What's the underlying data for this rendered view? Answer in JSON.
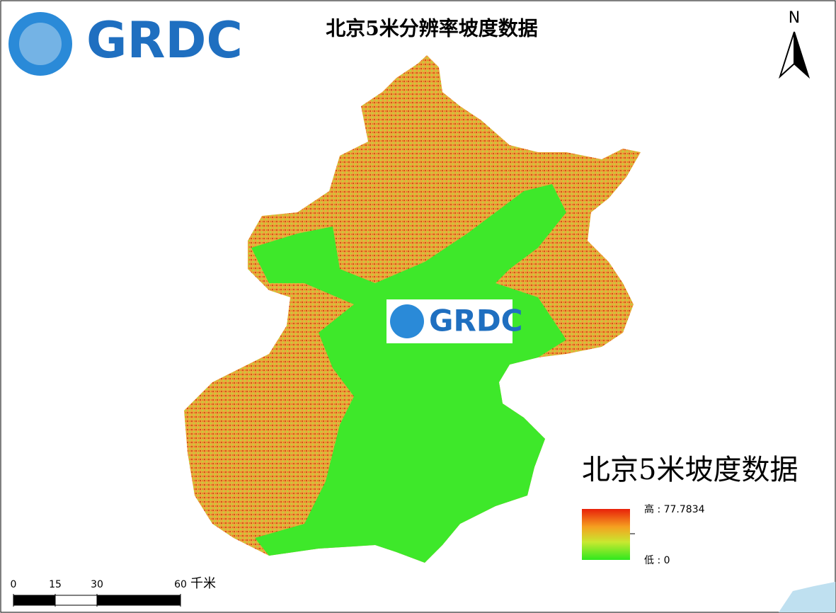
{
  "logo": "GRDC",
  "title": "北京5米分辨率坡度数据",
  "north": "N",
  "watermark": "GRDC",
  "legend": {
    "title": "北京5米坡度数据",
    "high": "高 : 77.7834",
    "low": "低 : 0"
  },
  "scale_bar": {
    "ticks": [
      0,
      15,
      30,
      60
    ],
    "unit": "千米"
  }
}
